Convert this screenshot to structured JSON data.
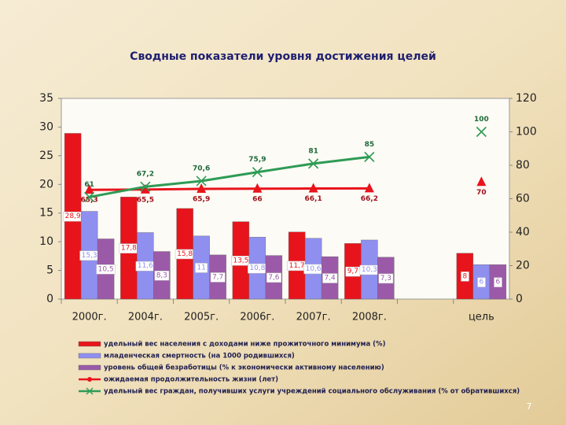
{
  "chart_data": {
    "type": "bar",
    "title": "Сводные показатели уровня достижения целей",
    "categories": [
      "2000г.",
      "2004г.",
      "2005г.",
      "2006г.",
      "2007г.",
      "2008г.",
      null,
      "цель"
    ],
    "ylim": [
      0,
      35
    ],
    "yticks": [
      0,
      5,
      10,
      15,
      20,
      25,
      30,
      35
    ],
    "y2lim": [
      0,
      120
    ],
    "y2ticks": [
      0,
      20,
      40,
      60,
      80,
      100,
      120
    ],
    "grid": false,
    "series": [
      {
        "name": "удельный вес населения с доходами ниже прожиточного минимума (%)",
        "type": "bar",
        "color": "#e8141b",
        "values": [
          28.9,
          17.8,
          15.8,
          13.5,
          11.7,
          9.7,
          null,
          8
        ],
        "value_labels": [
          "28,9",
          "17,8",
          "15,8",
          "13,5",
          "11,7",
          "9,7",
          null,
          "8"
        ]
      },
      {
        "name": "младенческая смертность (на 1000 родившихся)",
        "type": "bar",
        "color": "#8f8ff0",
        "values": [
          15.3,
          11.6,
          11,
          10.8,
          10.6,
          10.3,
          null,
          6
        ],
        "value_labels": [
          "15,3",
          "11,6",
          "11",
          "10,8",
          "10,6",
          "10,3",
          null,
          "6"
        ]
      },
      {
        "name": "уровень общей безработицы (% к экономически активному населению)",
        "type": "bar",
        "color": "#9b5aa8",
        "values": [
          10.5,
          8.3,
          7.7,
          7.6,
          7.4,
          7.3,
          null,
          6
        ],
        "value_labels": [
          "10,5",
          "8,3",
          "7,7",
          "7,6",
          "7,4",
          "7,3",
          null,
          "6"
        ]
      },
      {
        "name": "ожидаемая продолжительность жизни (лет)",
        "type": "line",
        "axis": "y2",
        "marker": "triangle",
        "color": "#e8141b",
        "values": [
          65.3,
          65.5,
          65.9,
          66,
          66.1,
          66.2,
          null,
          70
        ],
        "value_labels": [
          "65,3",
          "65,5",
          "65,9",
          "66",
          "66,1",
          "66,2",
          null,
          "70"
        ]
      },
      {
        "name": "удельный вес граждан, получивших услуги учреждений социального обслуживания (% от обратившихся)",
        "type": "line",
        "axis": "y2",
        "marker": "x",
        "color": "#2e9b55",
        "values": [
          61,
          67.2,
          70.6,
          75.9,
          81,
          85,
          null,
          100
        ],
        "value_labels": [
          "61",
          "67,2",
          "70,6",
          "75,9",
          "81",
          "85",
          null,
          "100"
        ]
      }
    ],
    "page_number": "7"
  }
}
